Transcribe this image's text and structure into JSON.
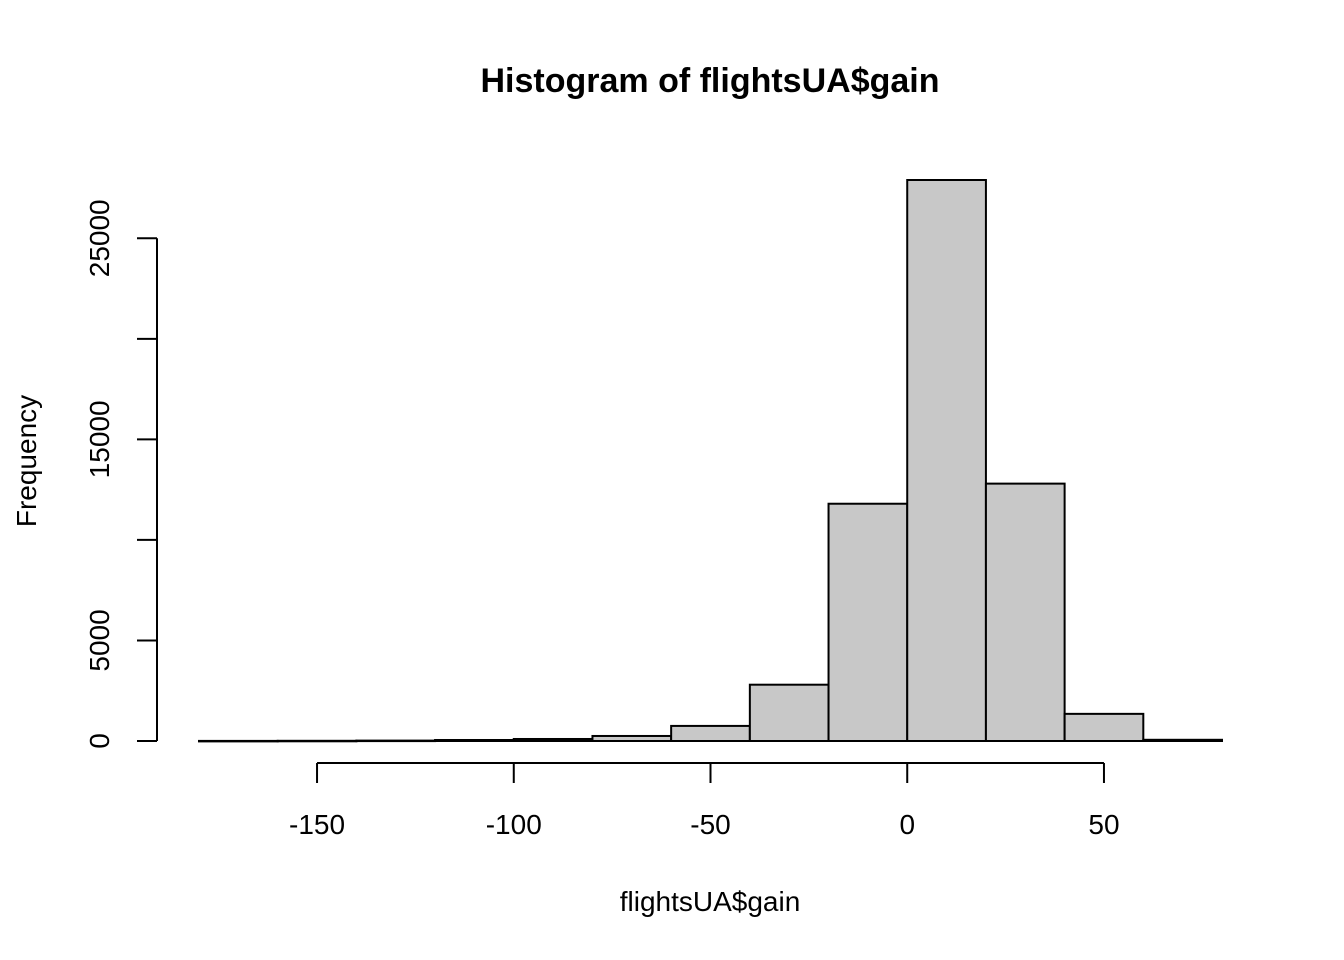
{
  "chart_data": {
    "type": "bar",
    "subtype": "histogram",
    "title": "Histogram of flightsUA$gain",
    "xlabel": "flightsUA$gain",
    "ylabel": "Frequency",
    "bin_edges": [
      -180,
      -160,
      -140,
      -120,
      -100,
      -80,
      -60,
      -40,
      -20,
      0,
      20,
      40,
      60,
      80
    ],
    "values": [
      5,
      10,
      20,
      50,
      100,
      250,
      750,
      2800,
      11800,
      27900,
      12800,
      1350,
      60
    ],
    "xlim": [
      -180,
      80
    ],
    "ylim": [
      0,
      27900
    ],
    "x_ticks": [
      -150,
      -100,
      -50,
      0,
      50
    ],
    "x_tick_labels": [
      "-150",
      "-100",
      "-50",
      "0",
      "50"
    ],
    "y_ticks": [
      0,
      5000,
      15000,
      25000
    ],
    "y_tick_labels": [
      "0",
      "5000",
      "15000",
      "25000"
    ],
    "y_minor_ticks": [
      10000,
      20000
    ],
    "bar_fill": "#c8c8c8",
    "bar_stroke": "#000000",
    "grid": false,
    "legend": "none"
  }
}
